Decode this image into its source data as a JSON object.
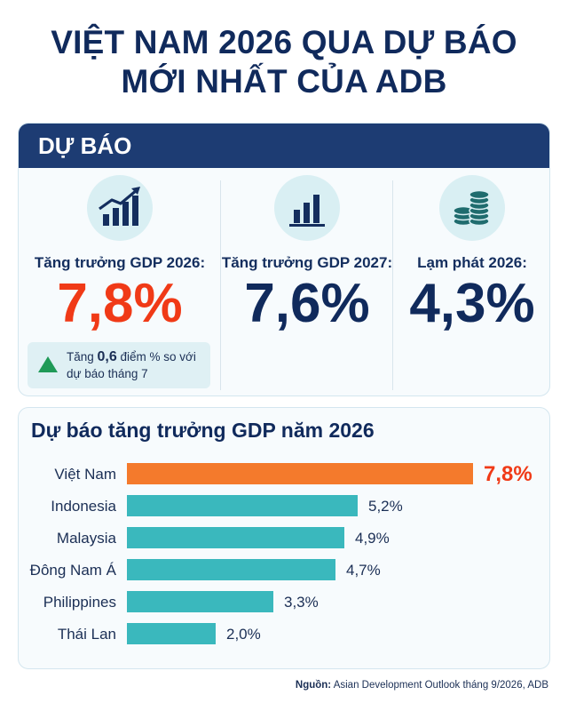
{
  "title": {
    "line1": "VIỆT NAM 2026 QUA DỰ BÁO",
    "line2": "MỚI NHẤT CỦA ADB"
  },
  "forecast": {
    "header": "DỰ BÁO",
    "stats": [
      {
        "label": "Tăng trưởng GDP 2026:",
        "value": "7,8%",
        "icon": "rising-bar-chart-icon",
        "color": "#f03a17"
      },
      {
        "label": "Tăng trưởng GDP 2027:",
        "value": "7,6%",
        "icon": "bar-chart-icon",
        "color": "#102a5c"
      },
      {
        "label": "Lạm phát 2026:",
        "value": "4,3%",
        "icon": "coin-stack-icon",
        "color": "#102a5c"
      }
    ],
    "note": {
      "prefix": "Tăng ",
      "highlight": "0,6",
      "suffix": " điểm % so với dự báo tháng 7"
    }
  },
  "chart_data": {
    "type": "bar",
    "orientation": "horizontal",
    "title": "Dự báo tăng trưởng GDP năm 2026",
    "categories": [
      "Việt Nam",
      "Indonesia",
      "Malaysia",
      "Đông Nam Á",
      "Philippines",
      "Thái Lan"
    ],
    "values": [
      7.8,
      5.2,
      4.9,
      4.7,
      3.3,
      2.0
    ],
    "value_labels": [
      "7,8%",
      "5,2%",
      "4,9%",
      "4,7%",
      "3,3%",
      "2,0%"
    ],
    "xlim": [
      0,
      7.8
    ],
    "grid": false,
    "colors": {
      "highlight": "#f47a2c",
      "highlight_label": "#f03a17",
      "default": "#3ab8bd",
      "label": "#1b2f55"
    }
  },
  "source": {
    "label": "Nguồn:",
    "text": " Asian Development Outlook tháng 9/2026, ADB"
  }
}
